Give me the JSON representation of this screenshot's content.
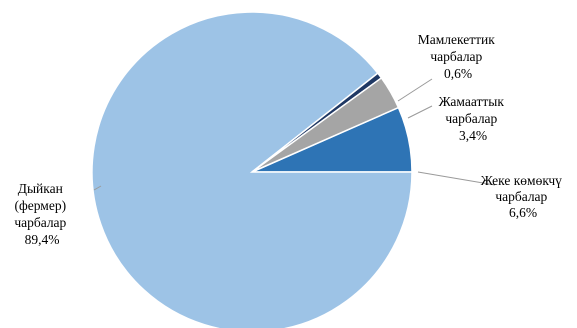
{
  "chart_data": {
    "type": "pie",
    "title": "",
    "slices": [
      {
        "lines": [
          "Жеке көмөкчү",
          "чарбалар",
          "6,6%"
        ],
        "value": 6.6,
        "color": "#2e74b5"
      },
      {
        "lines": [
          "Дыйкан",
          "(фермер)",
          "чарбалар",
          "89,4%"
        ],
        "value": 89.4,
        "color": "#9dc3e6"
      },
      {
        "lines": [
          "Мамлекеттик",
          "чарбалар",
          "0,6%"
        ],
        "value": 0.6,
        "color": "#1f3864"
      },
      {
        "lines": [
          "Жамааттык",
          "чарбалар",
          "3,4%"
        ],
        "value": 3.4,
        "color": "#a5a5a5"
      }
    ]
  }
}
